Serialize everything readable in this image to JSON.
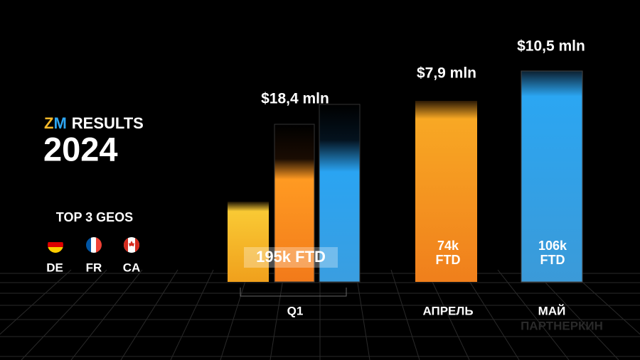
{
  "header": {
    "brand_z": "Z",
    "brand_m": "M",
    "title": "RESULTS",
    "year": "2024"
  },
  "geos": {
    "title": "TOP 3 GEOS",
    "items": [
      "DE",
      "FR",
      "CA"
    ]
  },
  "groups": [
    {
      "label": "Q1",
      "amount": "$18,4 mln",
      "ftd": "195k FTD"
    },
    {
      "label": "АПРЕЛЬ",
      "amount": "$7,9 mln",
      "ftd": [
        "74k",
        "FTD"
      ]
    },
    {
      "label": "МАЙ",
      "amount": "$10,5 mln",
      "ftd": [
        "106k",
        "FTD"
      ]
    }
  ],
  "watermark": "ПАРТНЕРКИН"
}
